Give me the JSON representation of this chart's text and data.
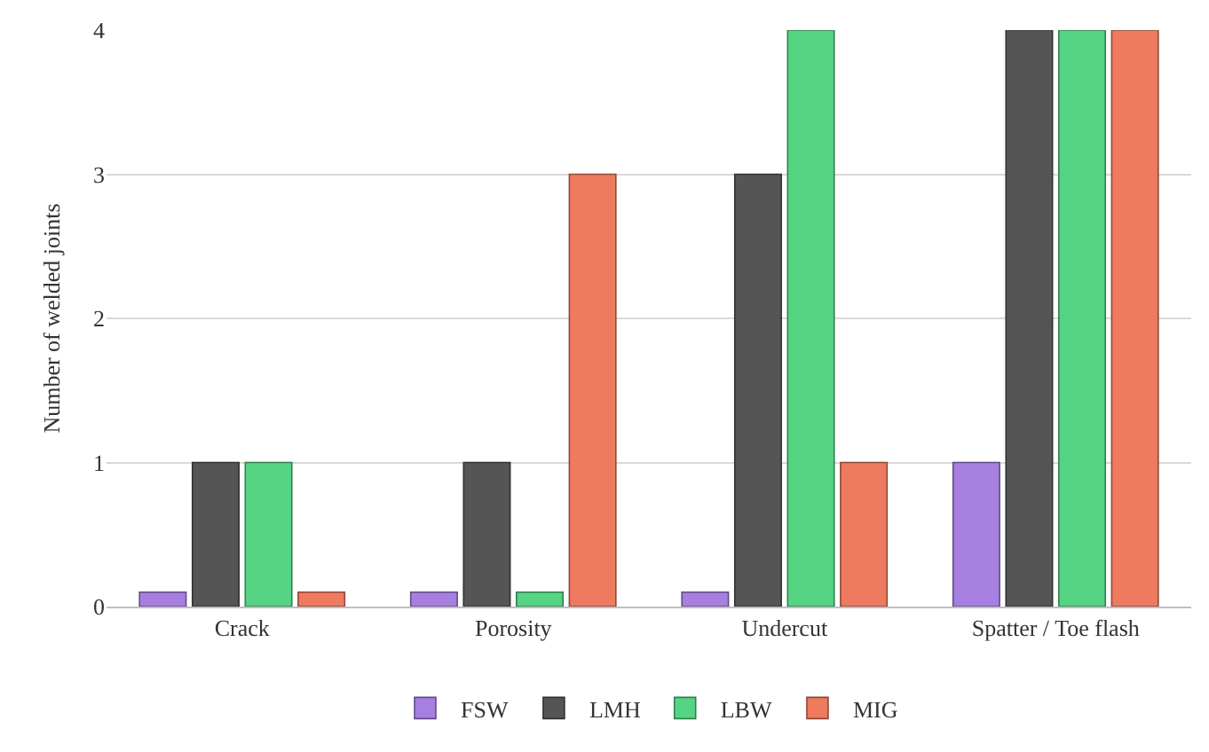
{
  "chart_data": {
    "type": "bar",
    "ylabel": "Number of welded joints",
    "categories": [
      "Crack",
      "Porosity",
      "Undercut",
      "Spatter / Toe flash"
    ],
    "series": [
      {
        "name": "FSW",
        "color": "#a67fe0",
        "values": [
          0.1,
          0.1,
          0.1,
          1
        ]
      },
      {
        "name": "LMH",
        "color": "#555555",
        "values": [
          1,
          1,
          3,
          4
        ]
      },
      {
        "name": "LBW",
        "color": "#55d484",
        "values": [
          1,
          0.1,
          4,
          4
        ]
      },
      {
        "name": "MIG",
        "color": "#ee7a60",
        "values": [
          0.1,
          3,
          1,
          4
        ]
      }
    ],
    "ylim": [
      0,
      4
    ],
    "yticks": [
      0,
      1,
      2,
      3,
      4
    ],
    "grid": "y",
    "legend": "bottom"
  }
}
